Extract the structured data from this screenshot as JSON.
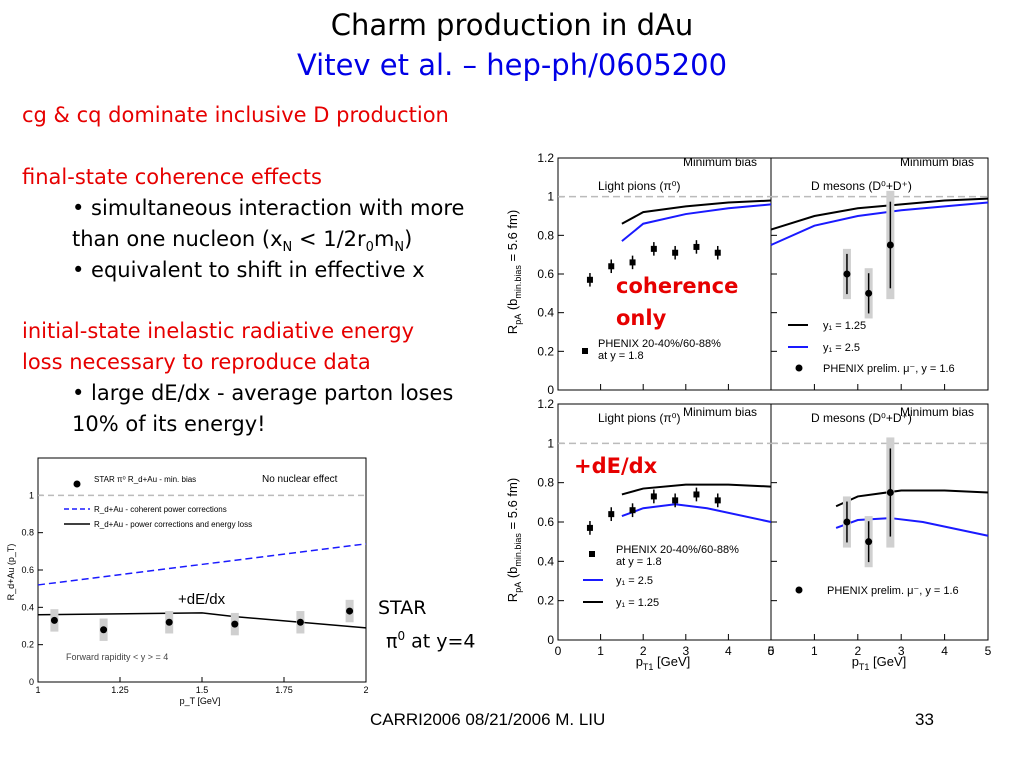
{
  "slide": {
    "title": "Charm production in dAu",
    "subtitle": "Vitev et al. – hep-ph/0605200",
    "footer": "CARRI2006 08/21/2006   M. LIU",
    "page_number": "33"
  },
  "colors": {
    "title": "#000000",
    "subtitle": "#0000e6",
    "highlight": "#e60000",
    "theory_blue": "#1a1aff"
  },
  "bullets": {
    "p1": "cg & cq dominate inclusive D production",
    "p2": "final-state coherence effects",
    "b1_line1": "• simultaneous interaction with more",
    "b1_line2_pre": "than one nucleon (x",
    "b1_sub_N1": "N",
    "b1_mid": " < 1/2r",
    "b1_sub_0": "0",
    "b1_m": "m",
    "b1_sub_N2": "N",
    "b1_end": ")",
    "b2": "• equivalent to shift in effective x",
    "p3_line1": "initial-state inelastic radiative energy",
    "p3_line2": "loss necessary to reproduce data",
    "b3_line1": "• large dE/dx - average parton loses",
    "b3_line2": "10% of its energy!"
  },
  "annotations": {
    "coherence_1": "coherence",
    "coherence_2": "only",
    "dedx_right": "+dE/dx",
    "dedx_left": "+dE/dx",
    "star_1": "STAR",
    "star_2": "π",
    "star_2_sup": "0",
    "star_3": " at y=4"
  },
  "chart_data": [
    {
      "type": "scatter",
      "panel": "STAR forward rapidity",
      "xlabel": "p_T [GeV]",
      "ylabel": "R_d+Au (p_T)",
      "xlim": [
        1,
        2
      ],
      "ylim": [
        0,
        1.2
      ],
      "xticks": [
        "1",
        "1.25",
        "1.5",
        "1.75",
        "2"
      ],
      "yticks": [
        "0",
        "0.2",
        "0.4",
        "0.6",
        "0.8",
        "1"
      ],
      "legend": [
        "STAR π⁰ R_d+Au - min. bias",
        "R_d+Au - coherent power corrections",
        "R_d+Au - power corrections and energy loss"
      ],
      "note_top_right": "No nuclear effect",
      "note_bottom": "Forward rapidity < y > = 4",
      "points": [
        {
          "x": 1.05,
          "y": 0.33
        },
        {
          "x": 1.2,
          "y": 0.28
        },
        {
          "x": 1.4,
          "y": 0.32
        },
        {
          "x": 1.6,
          "y": 0.31
        },
        {
          "x": 1.8,
          "y": 0.32
        },
        {
          "x": 1.95,
          "y": 0.38
        }
      ],
      "series": [
        {
          "name": "coherent power corrections",
          "x": [
            1,
            2
          ],
          "y": [
            0.52,
            0.74
          ]
        },
        {
          "name": "power corrections and energy loss",
          "x": [
            1,
            1.5,
            1.6,
            2
          ],
          "y": [
            0.36,
            0.37,
            0.35,
            0.29
          ]
        }
      ]
    },
    {
      "type": "scatter",
      "panel": "Light pions (π⁰), Minimum bias, coherence only",
      "xlim": [
        0,
        5
      ],
      "ylim": [
        0,
        1.2
      ],
      "label_left": "Light pions",
      "label_right": "Minimum bias",
      "points": [
        {
          "x": 0.75,
          "y": 0.57
        },
        {
          "x": 1.25,
          "y": 0.64
        },
        {
          "x": 1.75,
          "y": 0.66
        },
        {
          "x": 2.25,
          "y": 0.73
        },
        {
          "x": 2.75,
          "y": 0.71
        },
        {
          "x": 3.25,
          "y": 0.74
        },
        {
          "x": 3.75,
          "y": 0.71
        }
      ],
      "legend": [
        "PHENIX 20-40%/60-88%",
        "at y = 1.8"
      ],
      "series": [
        {
          "name": "black",
          "x": [
            1.5,
            2,
            3,
            4,
            5
          ],
          "y": [
            0.86,
            0.92,
            0.95,
            0.97,
            0.98
          ]
        },
        {
          "name": "blue",
          "x": [
            1.5,
            2,
            3,
            4,
            5
          ],
          "y": [
            0.77,
            0.86,
            0.91,
            0.94,
            0.96
          ]
        }
      ]
    },
    {
      "type": "scatter",
      "panel": "D mesons (D⁰+D⁺), Minimum bias, coherence only",
      "xlim": [
        0,
        5
      ],
      "ylim": [
        0,
        1.2
      ],
      "label_left": "D mesons",
      "label_right": "Minimum bias",
      "points": [
        {
          "x": 1.75,
          "y": 0.6
        },
        {
          "x": 2.25,
          "y": 0.5
        },
        {
          "x": 2.75,
          "y": 0.75
        }
      ],
      "legend": [
        "y₁ = 1.25",
        "y₁ = 2.5",
        "PHENIX prelim. μ⁻, y = 1.6"
      ],
      "series": [
        {
          "name": "y1 = 1.25",
          "x": [
            0,
            1,
            2,
            3,
            4,
            5
          ],
          "y": [
            0.83,
            0.9,
            0.94,
            0.96,
            0.98,
            0.99
          ]
        },
        {
          "name": "y1 = 2.5",
          "x": [
            0,
            1,
            2,
            3,
            4,
            5
          ],
          "y": [
            0.75,
            0.85,
            0.9,
            0.93,
            0.95,
            0.97
          ]
        }
      ]
    },
    {
      "type": "scatter",
      "panel": "Light pions (π⁰), Minimum bias, +dE/dx",
      "xlim": [
        0,
        5
      ],
      "ylim": [
        0,
        1.2
      ],
      "xlabel": "p_T1 [GeV]",
      "ylabel": "R_pA (b_min.bias = 5.6 fm)",
      "label_left": "Light pions",
      "label_right": "Minimum bias",
      "points": [
        {
          "x": 0.75,
          "y": 0.57
        },
        {
          "x": 1.25,
          "y": 0.64
        },
        {
          "x": 1.75,
          "y": 0.66
        },
        {
          "x": 2.25,
          "y": 0.73
        },
        {
          "x": 2.75,
          "y": 0.71
        },
        {
          "x": 3.25,
          "y": 0.74
        },
        {
          "x": 3.75,
          "y": 0.71
        }
      ],
      "legend": [
        "PHENIX 20-40%/60-88%",
        "at y = 1.8",
        "y₁ = 2.5",
        "y₁ = 1.25"
      ],
      "series": [
        {
          "name": "y1 = 1.25",
          "x": [
            1.5,
            2,
            3,
            4,
            5
          ],
          "y": [
            0.74,
            0.77,
            0.79,
            0.79,
            0.78
          ]
        },
        {
          "name": "y1 = 2.5",
          "x": [
            1.5,
            2,
            2.75,
            3.5,
            5
          ],
          "y": [
            0.63,
            0.67,
            0.69,
            0.67,
            0.6
          ]
        }
      ]
    },
    {
      "type": "scatter",
      "panel": "D mesons (D⁰+D⁺), Minimum bias, +dE/dx",
      "xlim": [
        0,
        5
      ],
      "ylim": [
        0,
        1.2
      ],
      "xlabel": "p_T1 [GeV]",
      "label_left": "D mesons",
      "label_right": "Minimum bias",
      "points": [
        {
          "x": 1.75,
          "y": 0.6
        },
        {
          "x": 2.25,
          "y": 0.5
        },
        {
          "x": 2.75,
          "y": 0.75
        }
      ],
      "legend": [
        "PHENIX prelim. μ⁻, y = 1.6"
      ],
      "series": [
        {
          "name": "black",
          "x": [
            1.5,
            2,
            3,
            4,
            5
          ],
          "y": [
            0.68,
            0.73,
            0.76,
            0.76,
            0.75
          ]
        },
        {
          "name": "blue",
          "x": [
            1.5,
            2,
            2.75,
            3.5,
            5
          ],
          "y": [
            0.57,
            0.61,
            0.62,
            0.6,
            0.53
          ]
        }
      ]
    }
  ]
}
